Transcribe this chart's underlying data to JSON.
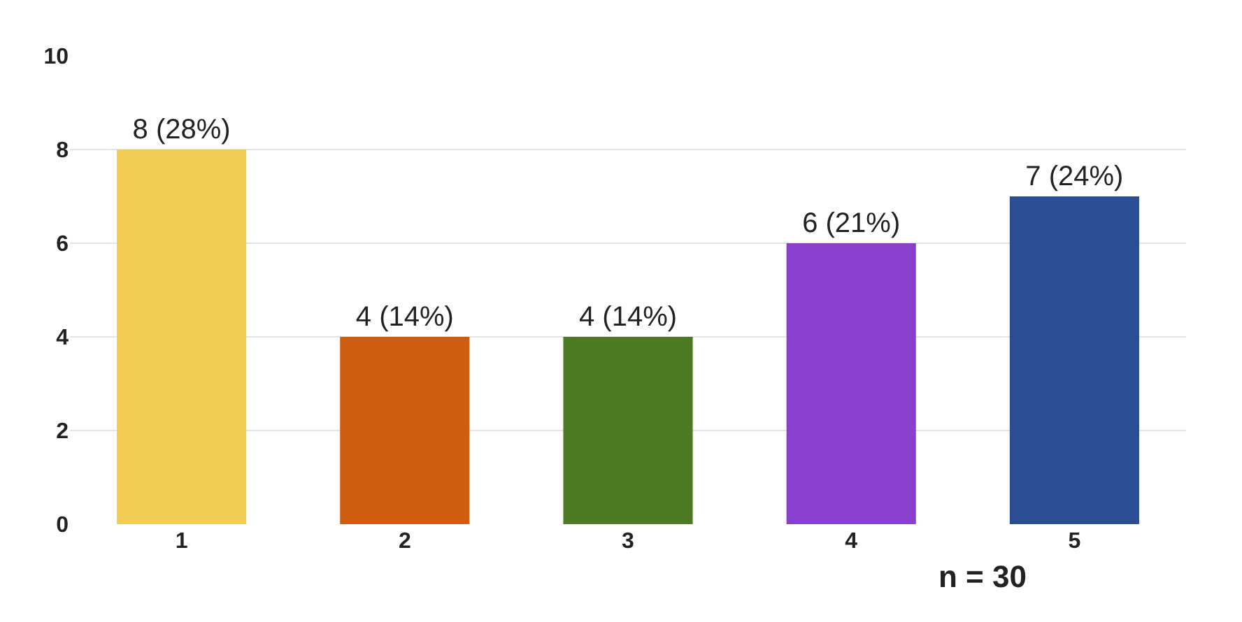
{
  "chart_data": {
    "type": "bar",
    "categories": [
      "1",
      "2",
      "3",
      "4",
      "5"
    ],
    "values": [
      8,
      4,
      4,
      6,
      7
    ],
    "colors": [
      "#f2cc55",
      "#cf5d10",
      "#4d7a24",
      "#8a3fcc",
      "#2b4d94"
    ],
    "value_labels": [
      "8 (28%)",
      "4 (14%)",
      "4 (14%)",
      "6 (21%)",
      "7 (24%)"
    ],
    "ylim": [
      0,
      10
    ],
    "yticks": [
      0,
      2,
      4,
      6,
      8,
      10
    ],
    "grid": "y",
    "legend": false,
    "annotations": [
      "n = 30"
    ]
  }
}
